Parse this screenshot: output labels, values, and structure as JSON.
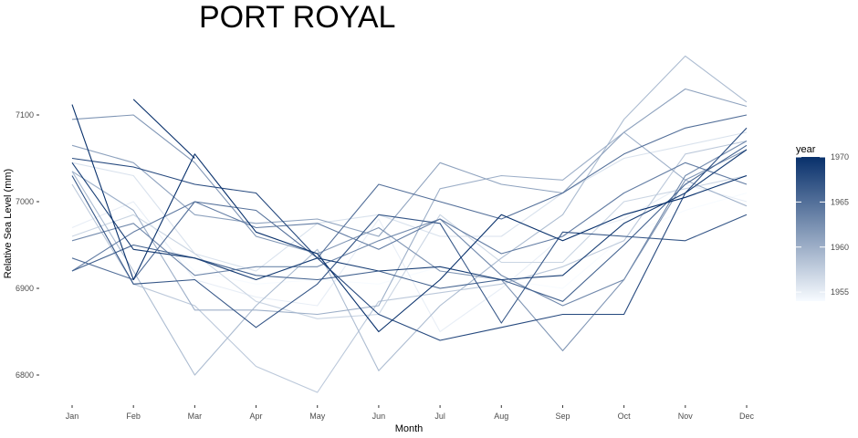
{
  "chart_data": {
    "type": "line",
    "title": "PORT ROYAL",
    "xlabel": "Month",
    "ylabel": "Relative Sea Level (mm)",
    "categories": [
      "Jan",
      "Feb",
      "Mar",
      "Apr",
      "May",
      "Jun",
      "Jul",
      "Aug",
      "Sep",
      "Oct",
      "Nov",
      "Dec"
    ],
    "ylim": [
      6760,
      7180
    ],
    "yticks": [
      6800,
      6900,
      7000,
      7100
    ],
    "grid": false,
    "legend": {
      "title": "year",
      "position": "right",
      "range": [
        1954,
        1970
      ],
      "ticks": [
        1955,
        1960,
        1965,
        1970
      ],
      "color_low": "#f7fbff",
      "color_high": "#08306b"
    },
    "series": [
      {
        "year": 1954,
        "values": [
          7040,
          6985,
          6920,
          6905,
          6910,
          6905,
          6925,
          6910,
          6900,
          6960,
          6990,
          7010
        ]
      },
      {
        "year": 1955,
        "values": [
          6970,
          7000,
          6910,
          6890,
          6880,
          6980,
          6850,
          6900,
          6960,
          6980,
          7020,
          7000
        ]
      },
      {
        "year": 1956,
        "values": [
          7045,
          7030,
          6940,
          6920,
          6975,
          6985,
          6960,
          6960,
          7010,
          7050,
          7065,
          7080
        ]
      },
      {
        "year": 1957,
        "values": [
          6960,
          6985,
          6940,
          6885,
          6865,
          6870,
          6985,
          6930,
          6930,
          7000,
          7015,
          7030
        ]
      },
      {
        "year": 1958,
        "values": [
          7020,
          6905,
          6880,
          6810,
          6780,
          6885,
          6895,
          6905,
          6925,
          6955,
          7055,
          7070
        ]
      },
      {
        "year": 1959,
        "values": [
          7035,
          6920,
          6800,
          6880,
          6945,
          6805,
          6880,
          6935,
          6985,
          7095,
          7168,
          7115
        ]
      },
      {
        "year": 1960,
        "values": [
          7035,
          6990,
          6875,
          6875,
          6870,
          6880,
          7015,
          7030,
          7025,
          7080,
          7025,
          6995
        ]
      },
      {
        "year": 1961,
        "values": [
          7065,
          7045,
          6985,
          6975,
          6980,
          6960,
          7045,
          7020,
          7010,
          7080,
          7130,
          7110
        ]
      },
      {
        "year": 1962,
        "values": [
          7095,
          7100,
          7045,
          6960,
          6940,
          6970,
          6920,
          6910,
          6828,
          6910,
          7025,
          7060
        ]
      },
      {
        "year": 1963,
        "values": [
          6955,
          6975,
          6915,
          6925,
          6925,
          6955,
          6980,
          6915,
          6880,
          6910,
          7030,
          7070
        ]
      },
      {
        "year": 1964,
        "values": [
          6920,
          6965,
          7000,
          6970,
          6975,
          6945,
          6980,
          6940,
          6960,
          7010,
          7045,
          7020
        ]
      },
      {
        "year": 1965,
        "values": [
          6935,
          6910,
          7000,
          6990,
          6935,
          7020,
          7000,
          6980,
          7010,
          7055,
          7085,
          7100
        ]
      },
      {
        "year": 1966,
        "values": [
          6920,
          6950,
          6935,
          6915,
          6910,
          6920,
          6900,
          6910,
          6885,
          6950,
          7020,
          7065
        ]
      },
      {
        "year": 1967,
        "values": [
          7030,
          6905,
          6910,
          6855,
          6905,
          6985,
          6975,
          6860,
          6965,
          6960,
          6955,
          6985
        ]
      },
      {
        "year": 1968,
        "values": [
          7050,
          7040,
          7020,
          7010,
          6935,
          6870,
          6840,
          6855,
          6870,
          6870,
          7010,
          7085
        ]
      },
      {
        "year": 1969,
        "values": [
          7045,
          6945,
          6935,
          6910,
          6935,
          6920,
          6925,
          6910,
          6915,
          6975,
          7010,
          7060
        ]
      },
      {
        "year": 1970,
        "values": [
          7112,
          6910,
          7055,
          6965,
          6940,
          6850,
          6910,
          6985,
          6955,
          6985,
          7005,
          7030
        ]
      },
      {
        "year": 1970,
        "values": [
          null,
          7118,
          7050,
          null,
          null,
          null,
          null,
          null,
          null,
          null,
          null,
          null
        ]
      }
    ]
  }
}
